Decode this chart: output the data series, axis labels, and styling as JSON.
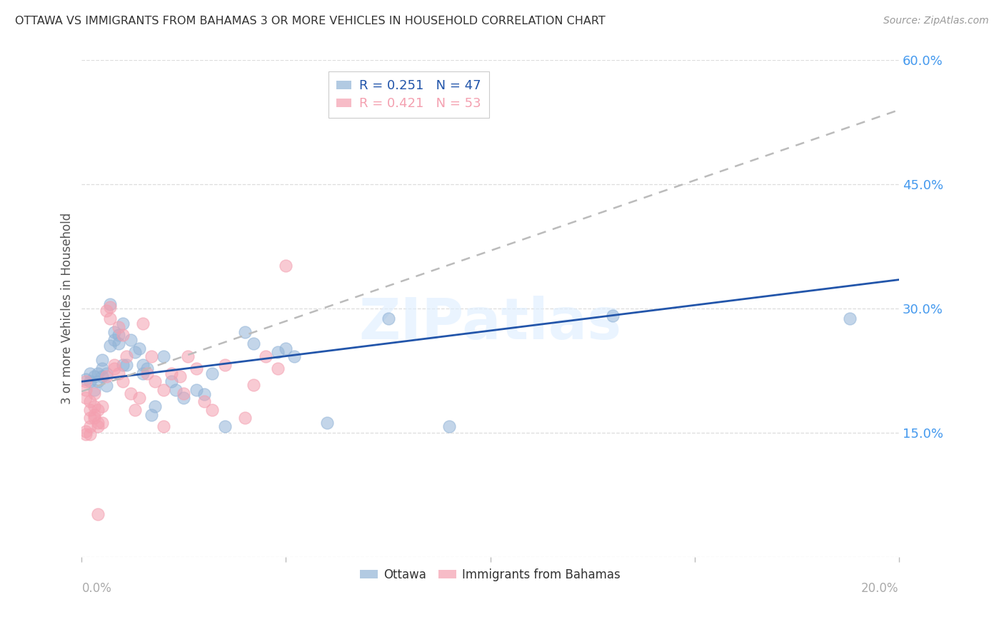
{
  "title": "OTTAWA VS IMMIGRANTS FROM BAHAMAS 3 OR MORE VEHICLES IN HOUSEHOLD CORRELATION CHART",
  "source": "Source: ZipAtlas.com",
  "ylabel": "3 or more Vehicles in Household",
  "x_min": 0.0,
  "x_max": 0.2,
  "y_min": 0.0,
  "y_max": 0.6,
  "yticks": [
    0.15,
    0.3,
    0.45,
    0.6
  ],
  "ytick_labels": [
    "15.0%",
    "30.0%",
    "45.0%",
    "60.0%"
  ],
  "xticks": [
    0.0,
    0.05,
    0.1,
    0.15,
    0.2
  ],
  "legend_ottawa_R": "0.251",
  "legend_ottawa_N": "47",
  "legend_bahamas_R": "0.421",
  "legend_bahamas_N": "53",
  "ottawa_color": "#92B4D7",
  "bahamas_color": "#F4A0B0",
  "trendline_ottawa_color": "#2255AA",
  "trendline_bahamas_color": "#BBBBBB",
  "label_color": "#4499EE",
  "n_color_ottawa": "#FF6600",
  "n_color_bahamas": "#FF3300",
  "watermark": "ZIPatlas",
  "background_color": "#FFFFFF",
  "ottawa_points": [
    [
      0.001,
      0.215
    ],
    [
      0.002,
      0.212
    ],
    [
      0.002,
      0.222
    ],
    [
      0.003,
      0.218
    ],
    [
      0.003,
      0.202
    ],
    [
      0.004,
      0.222
    ],
    [
      0.004,
      0.212
    ],
    [
      0.005,
      0.228
    ],
    [
      0.005,
      0.238
    ],
    [
      0.005,
      0.218
    ],
    [
      0.006,
      0.207
    ],
    [
      0.006,
      0.222
    ],
    [
      0.007,
      0.305
    ],
    [
      0.007,
      0.255
    ],
    [
      0.008,
      0.262
    ],
    [
      0.008,
      0.272
    ],
    [
      0.009,
      0.258
    ],
    [
      0.009,
      0.268
    ],
    [
      0.01,
      0.282
    ],
    [
      0.01,
      0.232
    ],
    [
      0.011,
      0.232
    ],
    [
      0.012,
      0.262
    ],
    [
      0.013,
      0.248
    ],
    [
      0.014,
      0.252
    ],
    [
      0.015,
      0.222
    ],
    [
      0.015,
      0.232
    ],
    [
      0.016,
      0.228
    ],
    [
      0.017,
      0.172
    ],
    [
      0.018,
      0.182
    ],
    [
      0.02,
      0.242
    ],
    [
      0.022,
      0.212
    ],
    [
      0.023,
      0.202
    ],
    [
      0.025,
      0.192
    ],
    [
      0.028,
      0.202
    ],
    [
      0.03,
      0.197
    ],
    [
      0.032,
      0.222
    ],
    [
      0.035,
      0.158
    ],
    [
      0.04,
      0.272
    ],
    [
      0.042,
      0.258
    ],
    [
      0.048,
      0.248
    ],
    [
      0.05,
      0.252
    ],
    [
      0.052,
      0.242
    ],
    [
      0.06,
      0.162
    ],
    [
      0.075,
      0.288
    ],
    [
      0.09,
      0.158
    ],
    [
      0.13,
      0.292
    ],
    [
      0.188,
      0.288
    ]
  ],
  "bahamas_points": [
    [
      0.001,
      0.192
    ],
    [
      0.001,
      0.202
    ],
    [
      0.001,
      0.212
    ],
    [
      0.002,
      0.178
    ],
    [
      0.002,
      0.168
    ],
    [
      0.002,
      0.158
    ],
    [
      0.002,
      0.188
    ],
    [
      0.003,
      0.182
    ],
    [
      0.003,
      0.198
    ],
    [
      0.003,
      0.172
    ],
    [
      0.003,
      0.168
    ],
    [
      0.004,
      0.162
    ],
    [
      0.004,
      0.178
    ],
    [
      0.004,
      0.158
    ],
    [
      0.005,
      0.182
    ],
    [
      0.005,
      0.162
    ],
    [
      0.006,
      0.298
    ],
    [
      0.006,
      0.218
    ],
    [
      0.007,
      0.302
    ],
    [
      0.007,
      0.288
    ],
    [
      0.008,
      0.232
    ],
    [
      0.008,
      0.228
    ],
    [
      0.009,
      0.278
    ],
    [
      0.009,
      0.222
    ],
    [
      0.01,
      0.268
    ],
    [
      0.01,
      0.212
    ],
    [
      0.011,
      0.242
    ],
    [
      0.012,
      0.198
    ],
    [
      0.013,
      0.178
    ],
    [
      0.014,
      0.192
    ],
    [
      0.015,
      0.282
    ],
    [
      0.016,
      0.222
    ],
    [
      0.017,
      0.242
    ],
    [
      0.018,
      0.212
    ],
    [
      0.02,
      0.202
    ],
    [
      0.022,
      0.222
    ],
    [
      0.024,
      0.218
    ],
    [
      0.025,
      0.198
    ],
    [
      0.026,
      0.242
    ],
    [
      0.028,
      0.228
    ],
    [
      0.03,
      0.188
    ],
    [
      0.032,
      0.178
    ],
    [
      0.035,
      0.232
    ],
    [
      0.04,
      0.168
    ],
    [
      0.042,
      0.208
    ],
    [
      0.045,
      0.242
    ],
    [
      0.048,
      0.228
    ],
    [
      0.05,
      0.352
    ],
    [
      0.004,
      0.052
    ],
    [
      0.001,
      0.148
    ],
    [
      0.001,
      0.152
    ],
    [
      0.002,
      0.148
    ],
    [
      0.02,
      0.158
    ]
  ],
  "ottawa_trendline": [
    [
      0.0,
      0.212
    ],
    [
      0.2,
      0.335
    ]
  ],
  "bahamas_trendline": [
    [
      0.0,
      0.2
    ],
    [
      0.2,
      0.54
    ]
  ]
}
